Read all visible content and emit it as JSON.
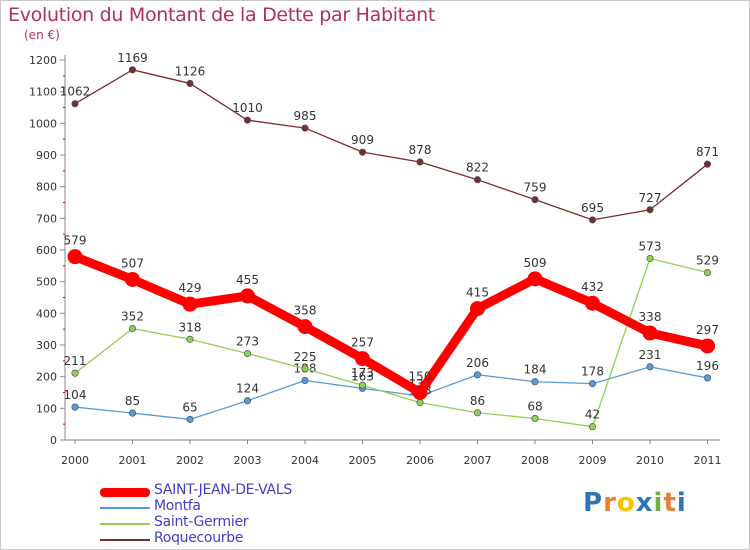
{
  "chart_data": {
    "type": "line",
    "title": "Evolution du Montant de la Dette par Habitant",
    "unit": "(en €)",
    "categories": [
      "2000",
      "2001",
      "2002",
      "2003",
      "2004",
      "2005",
      "2006",
      "2007",
      "2008",
      "2009",
      "2010",
      "2011"
    ],
    "ylim": [
      0,
      1200
    ],
    "yticks": [
      0,
      100,
      200,
      300,
      400,
      500,
      600,
      700,
      800,
      900,
      1000,
      1100,
      1200
    ],
    "grid": "none",
    "legend_position": "bottom-left",
    "series": [
      {
        "name": "SAINT-JEAN-DE-VALS",
        "color": "#ff0000",
        "weight": "thick",
        "values": [
          579,
          507,
          429,
          455,
          358,
          257,
          150,
          415,
          509,
          432,
          338,
          297
        ]
      },
      {
        "name": "Montfa",
        "color": "#5b9bd5",
        "weight": "thin",
        "values": [
          104,
          85,
          65,
          124,
          188,
          163,
          139,
          206,
          184,
          178,
          231,
          196
        ]
      },
      {
        "name": "Saint-Germier",
        "color": "#92d050",
        "weight": "thin",
        "values": [
          211,
          352,
          318,
          273,
          225,
          173,
          118,
          86,
          68,
          42,
          573,
          529
        ]
      },
      {
        "name": "Roquecourbe",
        "color": "#7b2d2d",
        "weight": "thin",
        "values": [
          1062,
          1169,
          1126,
          1010,
          985,
          909,
          878,
          822,
          759,
          695,
          727,
          871
        ]
      }
    ]
  },
  "logo": {
    "letters": [
      "P",
      "r",
      "o",
      "x",
      "i",
      "t",
      "i"
    ],
    "colors": [
      "#2e75b6",
      "#ed7d31",
      "#ffc000",
      "#2e75b6",
      "#70ad47",
      "#ed7d31",
      "#2e75b6"
    ]
  }
}
